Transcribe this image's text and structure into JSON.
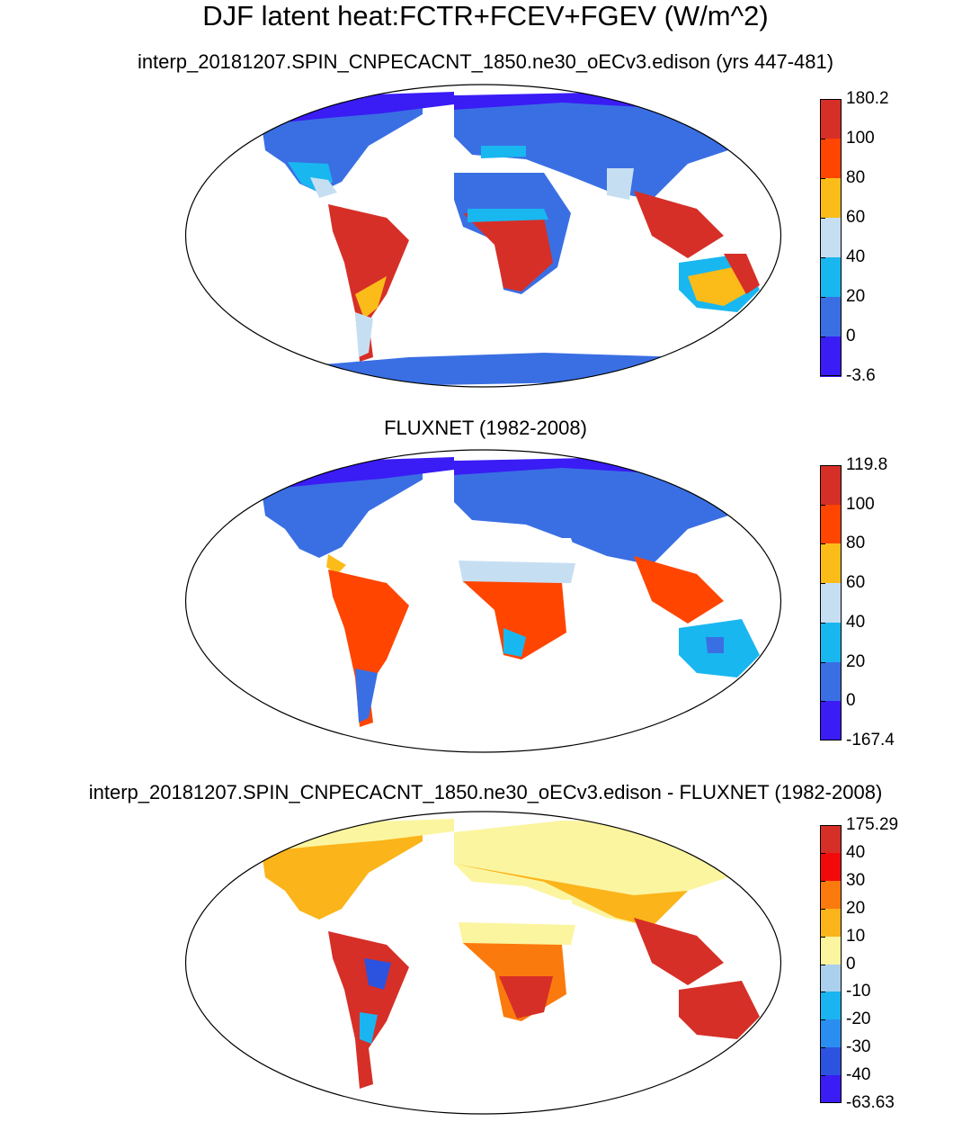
{
  "figure": {
    "title": "DJF latent heat:FCTR+FCEV+FGEV (W/m^2)"
  },
  "panels": [
    {
      "title": "interp_20181207.SPIN_CNPECACNT_1850.ne30_oECv3.edison (yrs 447-481)",
      "colorbar": {
        "labels": [
          "180.2",
          "100",
          "80",
          "60",
          "40",
          "20",
          "0",
          "-3.6"
        ],
        "colors": [
          "#d62f27",
          "#ff4500",
          "#fbbc1a",
          "#c6def2",
          "#19b7f0",
          "#3a6fe3",
          "#3a1cf5"
        ]
      }
    },
    {
      "title": "FLUXNET (1982-2008)",
      "colorbar": {
        "labels": [
          "119.8",
          "100",
          "80",
          "60",
          "40",
          "20",
          "0",
          "-167.4"
        ],
        "colors": [
          "#d62f27",
          "#ff4500",
          "#fbbc1a",
          "#c6def2",
          "#19b7f0",
          "#3a6fe3",
          "#3a1cf5"
        ]
      }
    },
    {
      "title": "interp_20181207.SPIN_CNPECACNT_1850.ne30_oECv3.edison - FLUXNET (1982-2008)",
      "colorbar": {
        "labels": [
          "175.29",
          "40",
          "30",
          "20",
          "10",
          "0",
          "-10",
          "-20",
          "-30",
          "-40",
          "-63.63"
        ],
        "colors": [
          "#d62f27",
          "#f20a0a",
          "#fb7a0d",
          "#fbb41a",
          "#fcf5a0",
          "#aad0ee",
          "#1ab4f0",
          "#2a8ef0",
          "#2c53e0",
          "#3a1cf5"
        ]
      }
    }
  ]
}
